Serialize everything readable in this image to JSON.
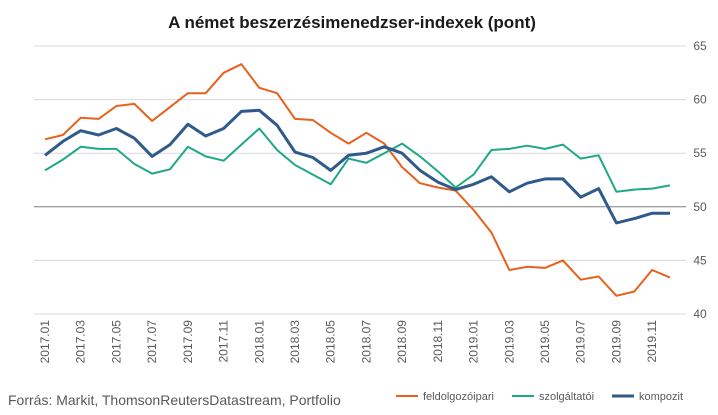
{
  "chart_data": {
    "type": "line",
    "title": "A német beszerzésimenedzser-indexek (pont)",
    "source": "Forrás: Markit, ThomsonReutersDatastream, Portfolio",
    "ylim": [
      40,
      65
    ],
    "yticks": [
      40,
      45,
      50,
      55,
      60,
      65
    ],
    "reference_line": 50,
    "grid": "horizontal",
    "legend_position": "bottom-right",
    "x": [
      "2017.01",
      "2017.02",
      "2017.03",
      "2017.04",
      "2017.05",
      "2017.06",
      "2017.07",
      "2017.08",
      "2017.09",
      "2017.10",
      "2017.11",
      "2017.12",
      "2018.01",
      "2018.02",
      "2018.03",
      "2018.04",
      "2018.05",
      "2018.06",
      "2018.07",
      "2018.08",
      "2018.09",
      "2018.10",
      "2018.11",
      "2018.12",
      "2019.01",
      "2019.02",
      "2019.03",
      "2019.04",
      "2019.05",
      "2019.06",
      "2019.07",
      "2019.08",
      "2019.09",
      "2019.10",
      "2019.11",
      "2019.12"
    ],
    "xtick_labels": [
      "2017.01",
      "2017.03",
      "2017.05",
      "2017.07",
      "2017.09",
      "2017.11",
      "2018.01",
      "2018.03",
      "2018.05",
      "2018.07",
      "2018.09",
      "2018.11",
      "2019.01",
      "2019.03",
      "2019.05",
      "2019.07",
      "2019.09",
      "2019.11"
    ],
    "series": [
      {
        "name": "feldolgozóipari",
        "color": "#e8601c",
        "values": [
          56.3,
          56.7,
          58.3,
          58.2,
          59.4,
          59.6,
          58.0,
          59.3,
          60.6,
          60.6,
          62.5,
          63.3,
          61.1,
          60.6,
          58.2,
          58.1,
          56.9,
          55.9,
          56.9,
          55.9,
          53.7,
          52.2,
          51.8,
          51.5,
          49.7,
          47.6,
          44.1,
          44.4,
          44.3,
          45.0,
          43.2,
          43.5,
          41.7,
          42.1,
          44.1,
          43.4
        ]
      },
      {
        "name": "szolgáltatói",
        "color": "#1ea886",
        "values": [
          53.4,
          54.4,
          55.6,
          55.4,
          55.4,
          54.0,
          53.1,
          53.5,
          55.6,
          54.7,
          54.3,
          55.8,
          57.3,
          55.3,
          53.9,
          53.0,
          52.1,
          54.5,
          54.1,
          55.0,
          55.9,
          54.7,
          53.3,
          51.8,
          53.0,
          55.3,
          55.4,
          55.7,
          55.4,
          55.8,
          54.5,
          54.8,
          51.4,
          51.6,
          51.7,
          52.0
        ]
      },
      {
        "name": "kompozit",
        "color": "#2f5a8a",
        "values": [
          54.8,
          56.1,
          57.1,
          56.7,
          57.3,
          56.4,
          54.7,
          55.8,
          57.7,
          56.6,
          57.3,
          58.9,
          59.0,
          57.6,
          55.1,
          54.6,
          53.4,
          54.8,
          55.0,
          55.6,
          55.0,
          53.4,
          52.3,
          51.6,
          52.1,
          52.8,
          51.4,
          52.2,
          52.6,
          52.6,
          50.9,
          51.7,
          48.5,
          48.9,
          49.4,
          49.4
        ]
      }
    ]
  }
}
